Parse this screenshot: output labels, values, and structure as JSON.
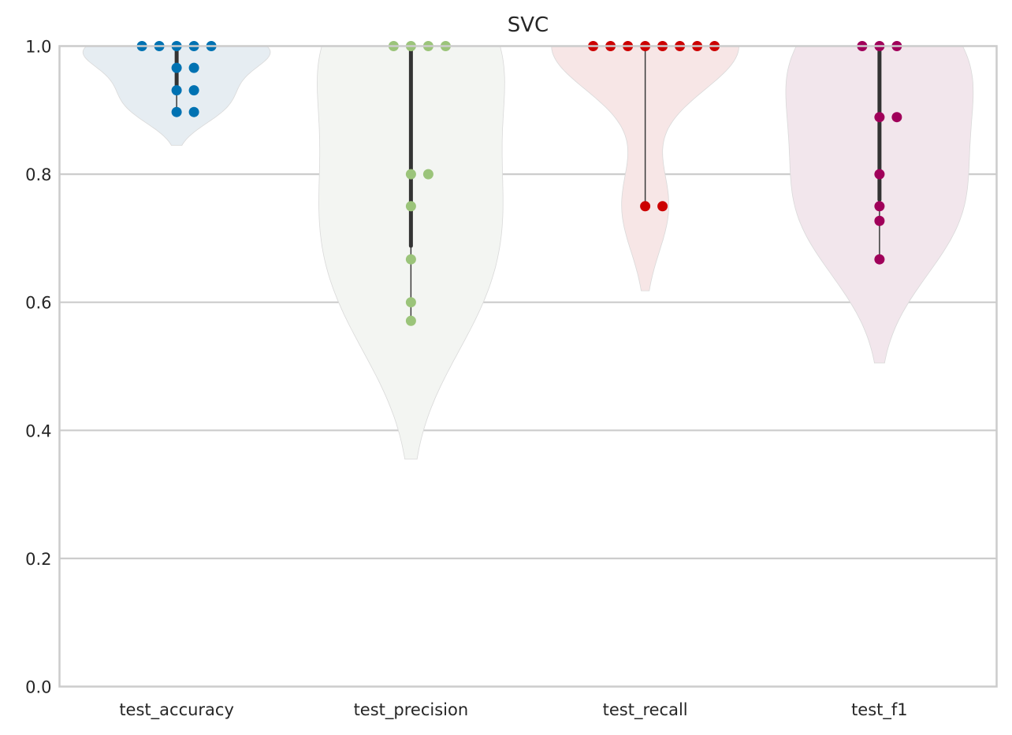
{
  "chart_data": {
    "type": "violin",
    "title": "SVC",
    "xlabel": "",
    "ylabel": "",
    "ylim": [
      0,
      1
    ],
    "grid": "horizontal",
    "y_ticks": [
      "0.0",
      "0.2",
      "0.4",
      "0.6",
      "0.8",
      "1.0"
    ],
    "categories": [
      "test_accuracy",
      "test_precision",
      "test_recall",
      "test_f1"
    ],
    "series": [
      {
        "color": "#0072b2",
        "violin_fill": "#e6edf2",
        "kde_range": [
          0.845,
          1.0
        ],
        "box": {
          "whisker_low": 0.897,
          "q1": 0.931,
          "median": 0.966,
          "q3": 1.0,
          "whisker_high": 1.0
        },
        "points": [
          1.0,
          1.0,
          1.0,
          1.0,
          1.0,
          0.966,
          0.966,
          0.931,
          0.931,
          0.897,
          0.897
        ]
      },
      {
        "color": "#9bc47a",
        "violin_fill": "#f3f5f2",
        "kde_range": [
          0.355,
          1.0
        ],
        "box": {
          "whisker_low": 0.571,
          "q1": 0.688,
          "median": 0.8,
          "q3": 1.0,
          "whisker_high": 1.0
        },
        "points": [
          1.0,
          1.0,
          1.0,
          1.0,
          0.8,
          0.8,
          0.75,
          0.667,
          0.6,
          0.571
        ]
      },
      {
        "color": "#cc0000",
        "violin_fill": "#f7e6e6",
        "kde_range": [
          0.618,
          1.0
        ],
        "box": {
          "whisker_low": 0.75,
          "q1": 1.0,
          "median": 1.0,
          "q3": 1.0,
          "whisker_high": 1.0
        },
        "points": [
          1.0,
          1.0,
          1.0,
          1.0,
          1.0,
          1.0,
          1.0,
          1.0,
          0.75,
          0.75
        ]
      },
      {
        "color": "#a0005a",
        "violin_fill": "#f2e6ec",
        "kde_range": [
          0.505,
          1.0
        ],
        "box": {
          "whisker_low": 0.667,
          "q1": 0.76,
          "median": 0.889,
          "q3": 1.0,
          "whisker_high": 1.0
        },
        "points": [
          1.0,
          1.0,
          1.0,
          0.889,
          0.889,
          0.8,
          0.75,
          0.727,
          0.667
        ]
      }
    ]
  }
}
